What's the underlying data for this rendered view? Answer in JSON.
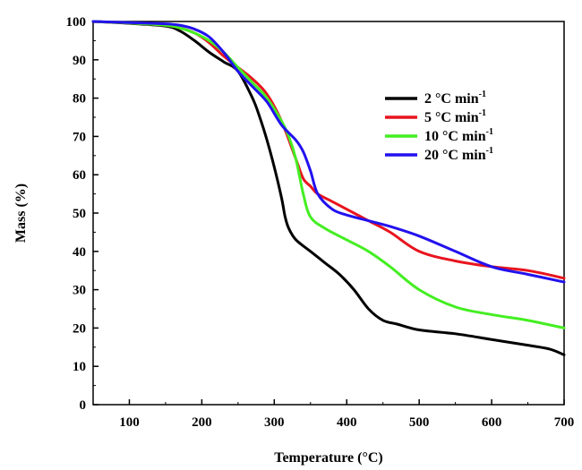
{
  "chart_data": {
    "type": "line",
    "xlabel": "Temperature (°C)",
    "ylabel": "Mass (%)",
    "xlim": [
      50,
      700
    ],
    "ylim": [
      0,
      100
    ],
    "x_ticks": [
      100,
      200,
      300,
      400,
      500,
      600,
      700
    ],
    "y_ticks": [
      0,
      10,
      20,
      30,
      40,
      50,
      60,
      70,
      80,
      90,
      100
    ],
    "grid": false,
    "legend_position": "right",
    "series": [
      {
        "name": "2 °C min-1",
        "color": "#000000",
        "x": [
          50,
          100,
          150,
          170,
          190,
          210,
          230,
          250,
          270,
          280,
          290,
          300,
          310,
          315,
          320,
          330,
          350,
          370,
          390,
          410,
          430,
          450,
          470,
          500,
          550,
          600,
          650,
          680,
          700
        ],
        "y": [
          100,
          99.5,
          98.8,
          97.5,
          95,
          92,
          89.5,
          87,
          80,
          75,
          69,
          62,
          54,
          49,
          46,
          43,
          40,
          37,
          34,
          30,
          25,
          22,
          21,
          19.5,
          18.5,
          17,
          15.5,
          14.5,
          13
        ]
      },
      {
        "name": "5 °C min-1",
        "color": "#e8141e",
        "x": [
          50,
          100,
          150,
          170,
          190,
          210,
          230,
          250,
          270,
          290,
          310,
          330,
          340,
          350,
          360,
          380,
          400,
          430,
          460,
          500,
          550,
          600,
          650,
          700
        ],
        "y": [
          100,
          99.6,
          99,
          98.3,
          97,
          94.5,
          91,
          88,
          85,
          81,
          74,
          64,
          59,
          57,
          55,
          53,
          51,
          48,
          45,
          40,
          37.5,
          36,
          35,
          33
        ]
      },
      {
        "name": "10 °C min-1",
        "color": "#44ee22",
        "x": [
          50,
          100,
          150,
          170,
          190,
          210,
          230,
          250,
          270,
          290,
          310,
          320,
          330,
          340,
          350,
          370,
          400,
          430,
          460,
          500,
          550,
          600,
          650,
          700
        ],
        "y": [
          100,
          99.6,
          99,
          98.3,
          97,
          95,
          92,
          88,
          84,
          80,
          74,
          70,
          64,
          55,
          49,
          46,
          43,
          40,
          36,
          30,
          25.5,
          23.5,
          22,
          20
        ]
      },
      {
        "name": "20 °C min-1",
        "color": "#2211ee",
        "x": [
          50,
          100,
          150,
          170,
          190,
          210,
          230,
          250,
          270,
          290,
          310,
          330,
          340,
          350,
          360,
          380,
          400,
          430,
          460,
          500,
          550,
          600,
          650,
          700
        ],
        "y": [
          100,
          99.7,
          99.4,
          99,
          98,
          96,
          92,
          87,
          83,
          79,
          73,
          69,
          66,
          61,
          55,
          51,
          49.5,
          48,
          46.5,
          44,
          40,
          36,
          34,
          32
        ]
      }
    ]
  }
}
